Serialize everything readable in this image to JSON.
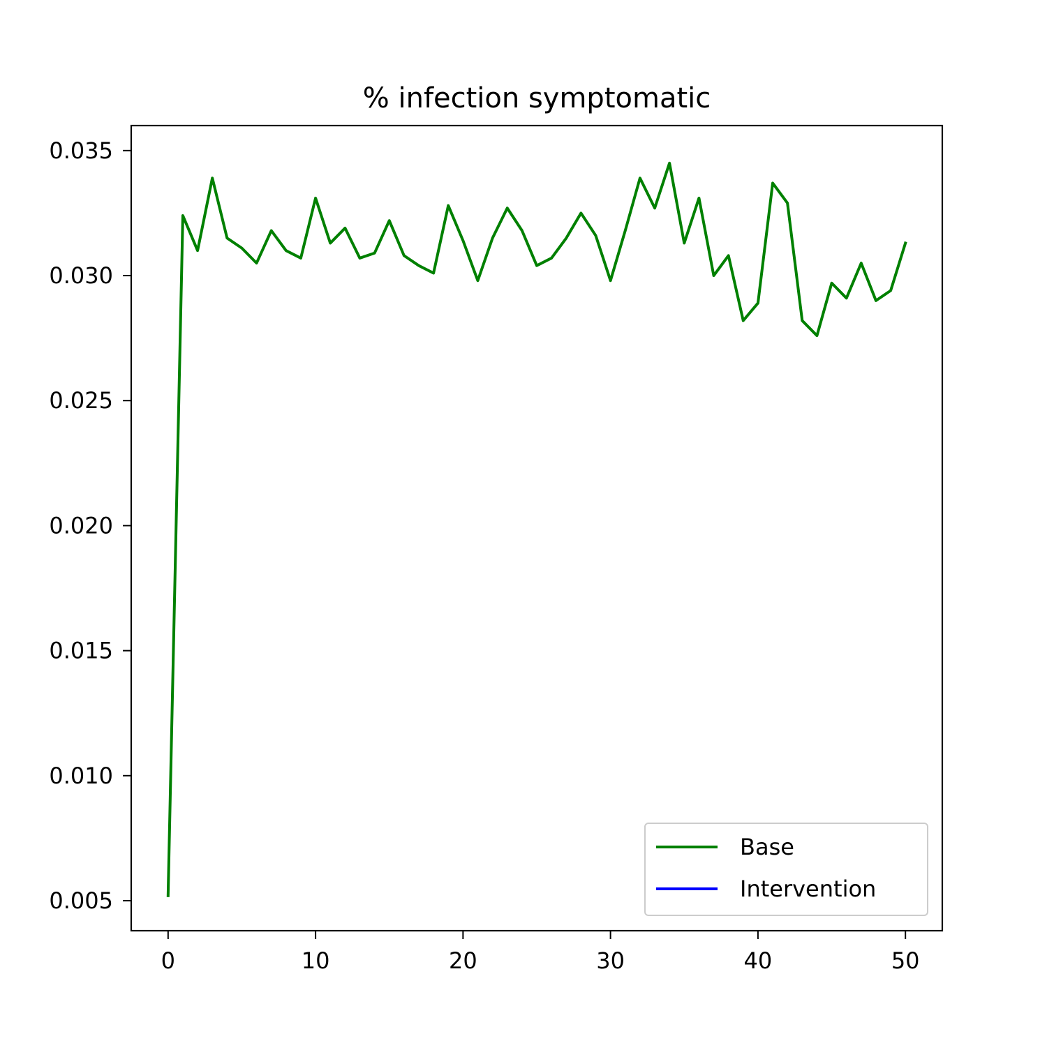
{
  "chart_data": {
    "type": "line",
    "title": "% infection symptomatic",
    "xlabel": "",
    "ylabel": "",
    "xlim": [
      -2.5,
      52.5
    ],
    "ylim": [
      0.0038,
      0.036
    ],
    "x_ticks": [
      0,
      10,
      20,
      30,
      40,
      50
    ],
    "x_tick_labels": [
      "0",
      "10",
      "20",
      "30",
      "40",
      "50"
    ],
    "y_ticks": [
      0.005,
      0.01,
      0.015,
      0.02,
      0.025,
      0.03,
      0.035
    ],
    "y_tick_labels": [
      "0.005",
      "0.010",
      "0.015",
      "0.020",
      "0.025",
      "0.030",
      "0.035"
    ],
    "grid": false,
    "legend_position": "lower-right",
    "series": [
      {
        "name": "Base",
        "color": "#008000",
        "x": [
          0,
          1,
          2,
          3,
          4,
          5,
          6,
          7,
          8,
          9,
          10,
          11,
          12,
          13,
          14,
          15,
          16,
          17,
          18,
          19,
          20,
          21,
          22,
          23,
          24,
          25,
          26,
          27,
          28,
          29,
          30,
          31,
          32,
          33,
          34,
          35,
          36,
          37,
          38,
          39,
          40,
          41,
          42,
          43,
          44,
          45,
          46,
          47,
          48,
          49,
          50
        ],
        "y": [
          0.0052,
          0.0324,
          0.031,
          0.0339,
          0.0315,
          0.0311,
          0.0305,
          0.0318,
          0.031,
          0.0307,
          0.0331,
          0.0313,
          0.0319,
          0.0307,
          0.0309,
          0.0322,
          0.0308,
          0.0304,
          0.0301,
          0.0328,
          0.0314,
          0.0298,
          0.0315,
          0.0327,
          0.0318,
          0.0304,
          0.0307,
          0.0315,
          0.0325,
          0.0316,
          0.0298,
          0.0318,
          0.0339,
          0.0327,
          0.0345,
          0.0313,
          0.0331,
          0.03,
          0.0308,
          0.0282,
          0.0289,
          0.0337,
          0.0329,
          0.0282,
          0.0276,
          0.0297,
          0.0291,
          0.0305,
          0.029,
          0.0294,
          0.0313
        ]
      },
      {
        "name": "Intervention",
        "color": "#0000ff",
        "x": [],
        "y": []
      }
    ]
  }
}
